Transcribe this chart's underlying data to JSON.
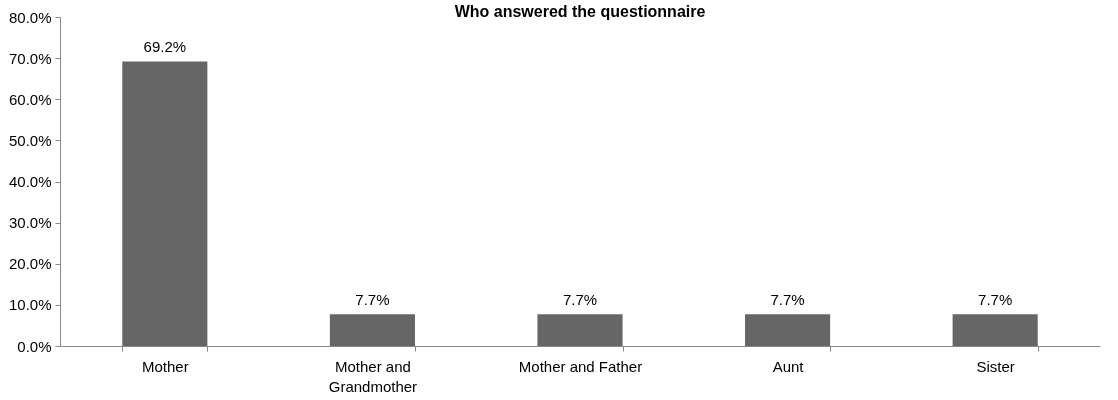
{
  "chart_data": {
    "type": "bar",
    "title": "Who answered the questionnaire",
    "categories": [
      "Mother",
      "Mother and Grandmother",
      "Mother and Father",
      "Aunt",
      "Sister"
    ],
    "values": [
      69.2,
      7.7,
      7.7,
      7.7,
      7.7
    ],
    "value_labels": [
      "69.2%",
      "7.7%",
      "7.7%",
      "7.7%",
      "7.7%"
    ],
    "color": "#666666",
    "ylim": [
      0,
      80
    ],
    "yticks": [
      {
        "value": 0,
        "label": "0.0%"
      },
      {
        "value": 10,
        "label": "10.0%"
      },
      {
        "value": 20,
        "label": "20.0%"
      },
      {
        "value": 30,
        "label": "30.0%"
      },
      {
        "value": 40,
        "label": "40.0%"
      },
      {
        "value": 50,
        "label": "50.0%"
      },
      {
        "value": 60,
        "label": "60.0%"
      },
      {
        "value": 70,
        "label": "70.0%"
      },
      {
        "value": 80,
        "label": "80.0%"
      }
    ],
    "grid": false
  }
}
